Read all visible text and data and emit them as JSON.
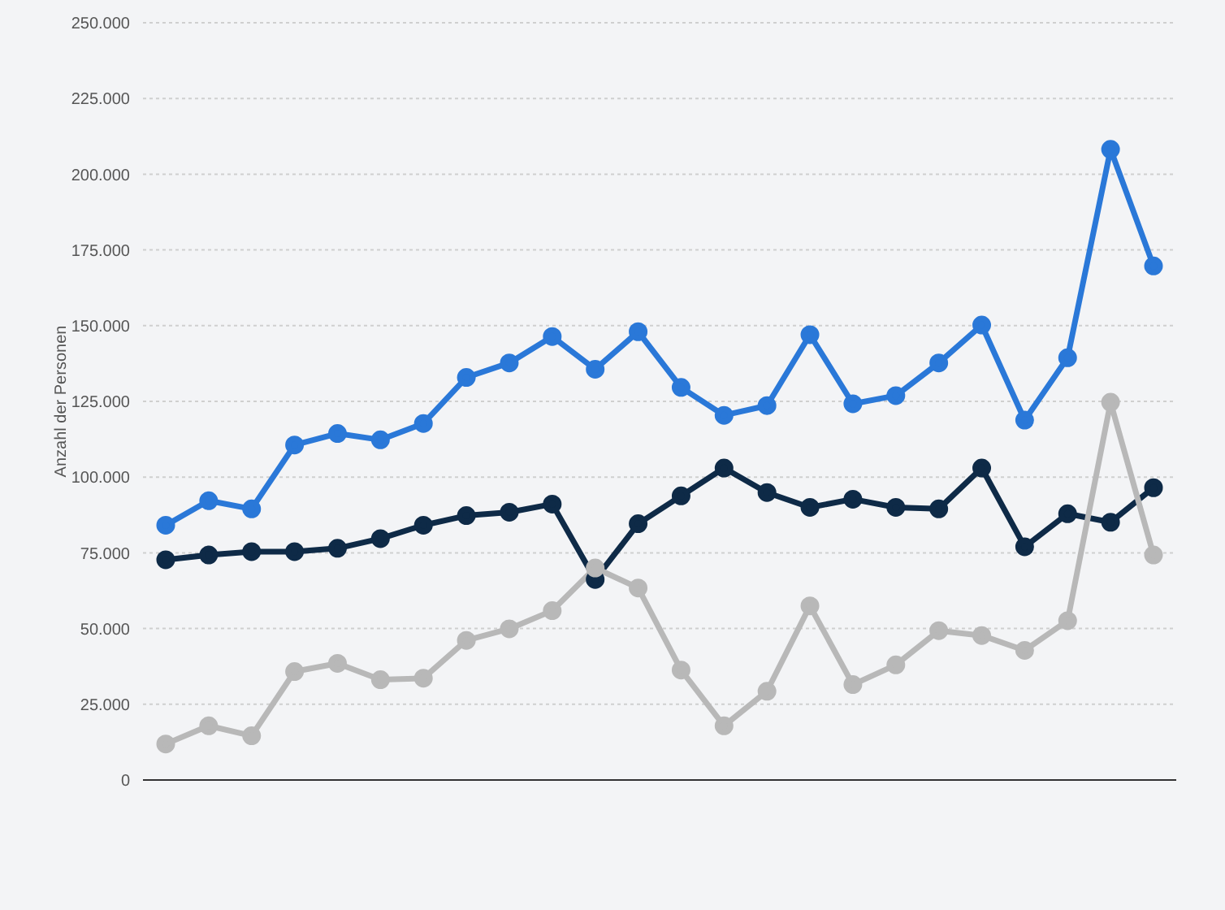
{
  "chart_data": {
    "type": "line",
    "ylabel": "Anzahl der Personen",
    "categories": [
      null,
      null,
      null,
      null,
      null,
      null,
      null,
      null,
      null,
      null,
      null,
      null,
      null,
      null,
      null,
      null,
      null,
      null,
      null,
      null,
      null,
      null,
      null,
      null
    ],
    "series": [
      {
        "color": "#2a78d8",
        "values": [
          84100,
          92200,
          89500,
          110600,
          114400,
          112300,
          117700,
          132900,
          137700,
          146400,
          135600,
          148000,
          129600,
          120400,
          123600,
          147000,
          124200,
          126900,
          137700,
          150200,
          118800,
          139400,
          208200,
          169700
        ]
      },
      {
        "color": "#0e2a47",
        "values": [
          72700,
          74300,
          75400,
          75400,
          76500,
          79700,
          84100,
          87300,
          88400,
          91100,
          66200,
          84600,
          93800,
          103000,
          94900,
          90000,
          92700,
          90000,
          89500,
          103000,
          77000,
          87900,
          85100,
          96500
        ]
      },
      {
        "color": "#b8b8b8",
        "values": [
          11900,
          17900,
          14600,
          35800,
          38500,
          33100,
          33600,
          46100,
          49900,
          55900,
          70000,
          63400,
          36300,
          17900,
          29300,
          57500,
          31500,
          38000,
          49300,
          47700,
          42800,
          52600,
          124700,
          74300
        ]
      }
    ],
    "ylim": [
      0,
      250000
    ],
    "yticks": [
      0,
      {
        "value": 25000,
        "label": "25.000"
      },
      {
        "value": 50000,
        "label": "50.000"
      },
      {
        "value": 75000,
        "label": "75.000"
      },
      {
        "value": 100000,
        "label": "100.000"
      },
      {
        "value": 125000,
        "label": "125.000"
      },
      {
        "value": 150000,
        "label": "150.000"
      },
      {
        "value": 175000,
        "label": "175.000"
      },
      {
        "value": 200000,
        "label": "200.000"
      },
      {
        "value": 225000,
        "label": "225.000"
      },
      {
        "value": 250000,
        "label": "250.000"
      }
    ],
    "grid": "y",
    "marker": "circle",
    "line_style": "solid"
  }
}
